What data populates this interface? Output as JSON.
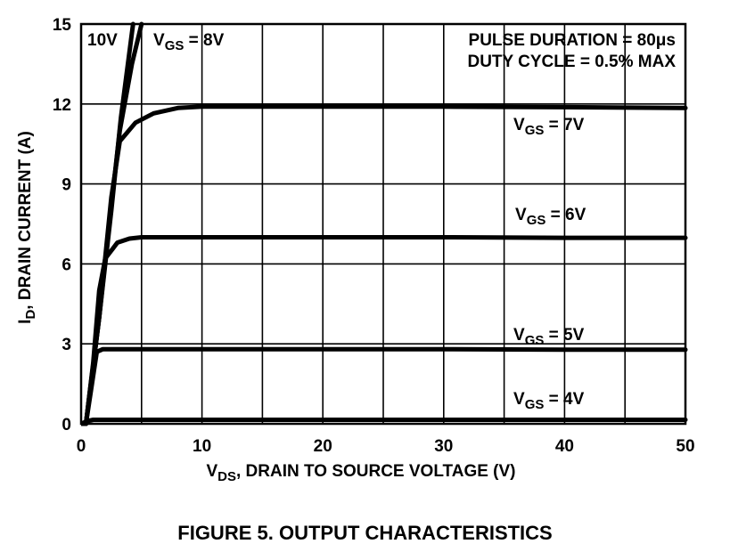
{
  "caption": "FIGURE 5.  OUTPUT CHARACTERISTICS",
  "chart_data": {
    "type": "line",
    "title": "",
    "xlabel_prefix": "V",
    "xlabel_sub": "DS",
    "xlabel_rest": ", DRAIN TO SOURCE VOLTAGE (V)",
    "ylabel_prefix": "I",
    "ylabel_sub": "D",
    "ylabel_rest": ", DRAIN CURRENT (A)",
    "xlim": [
      0,
      50
    ],
    "ylim": [
      0,
      15
    ],
    "xticks": [
      0,
      10,
      20,
      30,
      40,
      50
    ],
    "yticks": [
      0,
      3,
      6,
      9,
      12,
      15
    ],
    "grid": true,
    "notes": [
      "PULSE DURATION = 80μs",
      "DUTY CYCLE = 0.5% MAX"
    ],
    "series": [
      {
        "name": "10V",
        "label_text": "10V",
        "points": [
          [
            0,
            0
          ],
          [
            0.4,
            0
          ],
          [
            1.5,
            4
          ],
          [
            2.5,
            8
          ],
          [
            3.3,
            11.5
          ],
          [
            4.3,
            15
          ]
        ]
      },
      {
        "name": "VGS = 8V",
        "label_prefix": "V",
        "label_sub": "GS",
        "label_rest": " = 8V",
        "points": [
          [
            0,
            0
          ],
          [
            0.4,
            0
          ],
          [
            1.5,
            4
          ],
          [
            2.4,
            7.8
          ],
          [
            3.2,
            11
          ],
          [
            4.2,
            13.5
          ],
          [
            5.0,
            15
          ]
        ]
      },
      {
        "name": "VGS = 7V",
        "label_prefix": "V",
        "label_sub": "GS",
        "label_rest": " = 7V",
        "points": [
          [
            0,
            0
          ],
          [
            0.4,
            0
          ],
          [
            1.5,
            4
          ],
          [
            2.5,
            8.5
          ],
          [
            3.2,
            10.6
          ],
          [
            4.5,
            11.3
          ],
          [
            6,
            11.65
          ],
          [
            8,
            11.85
          ],
          [
            10,
            11.9
          ],
          [
            15,
            11.9
          ],
          [
            20,
            11.9
          ],
          [
            30,
            11.9
          ],
          [
            40,
            11.88
          ],
          [
            50,
            11.85
          ]
        ]
      },
      {
        "name": "VGS = 6V",
        "label_prefix": "V",
        "label_sub": "GS",
        "label_rest": " = 6V",
        "points": [
          [
            0,
            0
          ],
          [
            0.4,
            0
          ],
          [
            1.0,
            2.3
          ],
          [
            1.5,
            5.0
          ],
          [
            2.0,
            6.2
          ],
          [
            3.0,
            6.8
          ],
          [
            4.0,
            6.95
          ],
          [
            5.0,
            7.0
          ],
          [
            10,
            7.0
          ],
          [
            20,
            7.0
          ],
          [
            30,
            7.0
          ],
          [
            40,
            6.98
          ],
          [
            50,
            6.98
          ]
        ]
      },
      {
        "name": "VGS = 5V",
        "label_prefix": "V",
        "label_sub": "GS",
        "label_rest": " = 5V",
        "points": [
          [
            0,
            0
          ],
          [
            0.4,
            0
          ],
          [
            0.9,
            1.5
          ],
          [
            1.3,
            2.7
          ],
          [
            1.8,
            2.8
          ],
          [
            3,
            2.8
          ],
          [
            10,
            2.8
          ],
          [
            20,
            2.8
          ],
          [
            30,
            2.8
          ],
          [
            40,
            2.78
          ],
          [
            50,
            2.78
          ]
        ]
      },
      {
        "name": "VGS = 4V",
        "label_prefix": "V",
        "label_sub": "GS",
        "label_rest": " = 4V",
        "points": [
          [
            0,
            0
          ],
          [
            0.5,
            0.1
          ],
          [
            1.0,
            0.15
          ],
          [
            2,
            0.15
          ],
          [
            10,
            0.15
          ],
          [
            20,
            0.15
          ],
          [
            30,
            0.15
          ],
          [
            40,
            0.15
          ],
          [
            50,
            0.15
          ]
        ]
      }
    ]
  }
}
